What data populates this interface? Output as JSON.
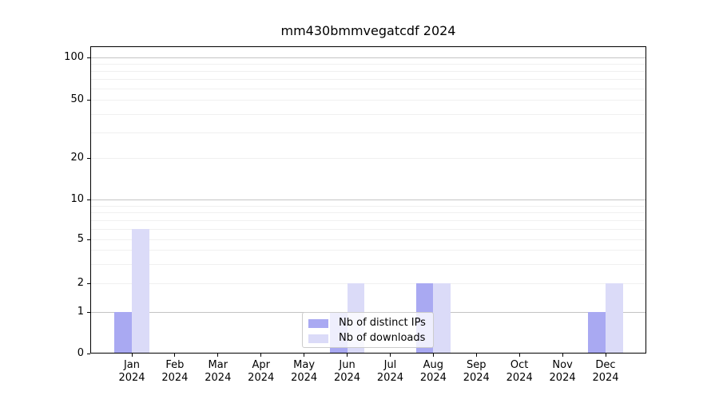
{
  "title": "mm430bmmvegatcdf 2024",
  "legend": {
    "items": [
      {
        "label": "Nb of distinct IPs",
        "color": "#a9a9f2"
      },
      {
        "label": "Nb of downloads",
        "color": "#dbdbf8"
      }
    ]
  },
  "chart_data": {
    "type": "bar",
    "title": "mm430bmmvegatcdf 2024",
    "categories": [
      "Jan",
      "Feb",
      "Mar",
      "Apr",
      "May",
      "Jun",
      "Jul",
      "Aug",
      "Sep",
      "Oct",
      "Nov",
      "Dec"
    ],
    "category_year": "2024",
    "series": [
      {
        "name": "Nb of distinct IPs",
        "color": "#a9a9f2",
        "values": [
          1,
          0,
          0,
          0,
          0,
          1,
          0,
          2,
          0,
          0,
          0,
          1
        ]
      },
      {
        "name": "Nb of downloads",
        "color": "#dbdbf8",
        "values": [
          6,
          0,
          0,
          0,
          0,
          2,
          0,
          2,
          0,
          0,
          0,
          2
        ]
      }
    ],
    "y_axis": {
      "ticks": [
        0,
        1,
        2,
        5,
        10,
        20,
        50,
        100
      ],
      "scale": "symlog",
      "grid": "major-and-minor horizontal"
    },
    "legend_position": "lower center"
  },
  "colors": {
    "grid_strong": "#c4c4c4",
    "grid_faint": "#f0f0f0",
    "spine": "#000000"
  }
}
